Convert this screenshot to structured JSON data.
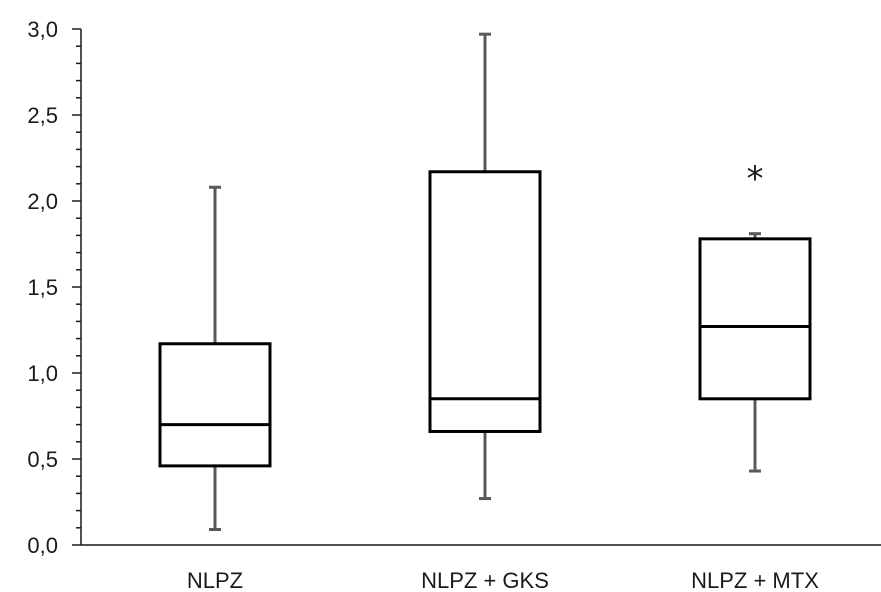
{
  "chart_data": {
    "type": "box",
    "title": "",
    "xlabel": "",
    "ylabel": "",
    "ylim": [
      0,
      3.0
    ],
    "y_ticks": [
      0.0,
      0.5,
      1.0,
      1.5,
      2.0,
      2.5,
      3.0
    ],
    "y_tick_labels": [
      "0,0",
      "0,5",
      "1,0",
      "1,5",
      "2,0",
      "2,5",
      "3,0"
    ],
    "categories": [
      "NLPZ",
      "NLPZ + GKS",
      "NLPZ + MTX"
    ],
    "boxes": [
      {
        "category": "NLPZ",
        "min": 0.09,
        "q1": 0.46,
        "median": 0.7,
        "q3": 1.17,
        "max": 2.08
      },
      {
        "category": "NLPZ + GKS",
        "min": 0.27,
        "q1": 0.66,
        "median": 0.85,
        "q3": 2.17,
        "max": 2.97
      },
      {
        "category": "NLPZ + MTX",
        "min": 0.43,
        "q1": 0.85,
        "median": 1.27,
        "q3": 1.78,
        "max": 1.81
      }
    ],
    "annotations": [
      {
        "category": "NLPZ + MTX",
        "text": "*",
        "y": 2.17
      }
    ],
    "grid": false,
    "legend": "none"
  }
}
